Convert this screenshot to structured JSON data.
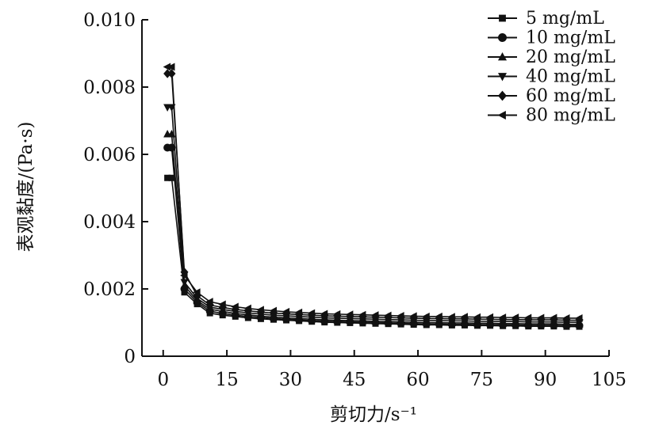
{
  "chart_data": {
    "type": "line",
    "title": "",
    "xlabel": "剪切力/s⁻¹",
    "ylabel": "表观黏度/(Pa·s)",
    "xlim": [
      -5,
      105
    ],
    "ylim": [
      0,
      0.01
    ],
    "xticks": [
      0,
      15,
      30,
      45,
      60,
      75,
      90,
      105
    ],
    "xtick_labels": [
      "0",
      "15",
      "30",
      "45",
      "60",
      "75",
      "90",
      "105"
    ],
    "yticks": [
      0,
      0.002,
      0.004,
      0.006,
      0.008,
      0.01
    ],
    "ytick_labels": [
      "0",
      "0.002",
      "0.004",
      "0.006",
      "0.008",
      "0.010"
    ],
    "grid": false,
    "legend_position": "top-right",
    "x": [
      1,
      2,
      5,
      8,
      11,
      14,
      17,
      20,
      23,
      26,
      29,
      32,
      35,
      38,
      41,
      44,
      47,
      50,
      53,
      56,
      59,
      62,
      65,
      68,
      71,
      74,
      77,
      80,
      83,
      86,
      89,
      92,
      95,
      98
    ],
    "series": [
      {
        "name": "5 mg/mL",
        "marker": "square",
        "values": [
          0.0053,
          0.0053,
          0.0019,
          0.00155,
          0.00128,
          0.00122,
          0.00118,
          0.00114,
          0.00111,
          0.00109,
          0.00107,
          0.00105,
          0.00103,
          0.00101,
          0.001,
          0.00099,
          0.00098,
          0.00097,
          0.00096,
          0.00095,
          0.00094,
          0.00093,
          0.00093,
          0.00092,
          0.00092,
          0.00091,
          0.00091,
          0.0009,
          0.0009,
          0.00089,
          0.00089,
          0.00089,
          0.00088,
          0.00088
        ]
      },
      {
        "name": "10 mg/mL",
        "marker": "circle",
        "values": [
          0.0062,
          0.0062,
          0.002,
          0.0016,
          0.00134,
          0.00127,
          0.00122,
          0.00118,
          0.00115,
          0.00112,
          0.0011,
          0.00108,
          0.00106,
          0.00104,
          0.00103,
          0.00102,
          0.00101,
          0.001,
          0.00099,
          0.00098,
          0.00097,
          0.00096,
          0.00096,
          0.00095,
          0.00095,
          0.00094,
          0.00094,
          0.00093,
          0.00093,
          0.00092,
          0.00092,
          0.00092,
          0.00091,
          0.00091
        ]
      },
      {
        "name": "20 mg/mL",
        "marker": "triangle-up",
        "values": [
          0.0066,
          0.0066,
          0.0021,
          0.00165,
          0.0014,
          0.00133,
          0.00127,
          0.00123,
          0.00119,
          0.00116,
          0.00114,
          0.00112,
          0.0011,
          0.00108,
          0.00107,
          0.00106,
          0.00105,
          0.00104,
          0.00103,
          0.00102,
          0.00101,
          0.001,
          0.001,
          0.00099,
          0.00099,
          0.00098,
          0.00098,
          0.00097,
          0.00097,
          0.00096,
          0.00096,
          0.00096,
          0.00095,
          0.00095
        ]
      },
      {
        "name": "40 mg/mL",
        "marker": "triangle-down",
        "values": [
          0.0074,
          0.0074,
          0.0022,
          0.00172,
          0.00146,
          0.00139,
          0.00133,
          0.00129,
          0.00125,
          0.00122,
          0.0012,
          0.00118,
          0.00116,
          0.00114,
          0.00113,
          0.00112,
          0.00111,
          0.0011,
          0.00109,
          0.00108,
          0.00107,
          0.00106,
          0.00106,
          0.00105,
          0.00105,
          0.00104,
          0.00104,
          0.00103,
          0.00103,
          0.00102,
          0.00102,
          0.00102,
          0.00101,
          0.00101
        ]
      },
      {
        "name": "60 mg/mL",
        "marker": "diamond",
        "values": [
          0.0084,
          0.0084,
          0.0025,
          0.0018,
          0.00152,
          0.00145,
          0.00139,
          0.00135,
          0.00131,
          0.00128,
          0.00126,
          0.00124,
          0.00122,
          0.0012,
          0.00119,
          0.00118,
          0.00117,
          0.00116,
          0.00115,
          0.00114,
          0.00113,
          0.00112,
          0.00112,
          0.00111,
          0.00111,
          0.0011,
          0.0011,
          0.00109,
          0.00109,
          0.00108,
          0.00108,
          0.00108,
          0.00107,
          0.00107
        ]
      },
      {
        "name": "80 mg/mL",
        "marker": "triangle-left",
        "values": [
          0.0086,
          0.0086,
          0.0024,
          0.0019,
          0.00162,
          0.00154,
          0.00147,
          0.00142,
          0.00138,
          0.00135,
          0.00132,
          0.0013,
          0.00128,
          0.00126,
          0.00125,
          0.00124,
          0.00123,
          0.00122,
          0.00121,
          0.0012,
          0.00119,
          0.00118,
          0.00118,
          0.00117,
          0.00117,
          0.00116,
          0.00116,
          0.00115,
          0.00115,
          0.00114,
          0.00114,
          0.00114,
          0.00113,
          0.00113
        ]
      }
    ],
    "colors": {
      "series": "#111111",
      "axis": "#111111"
    }
  }
}
